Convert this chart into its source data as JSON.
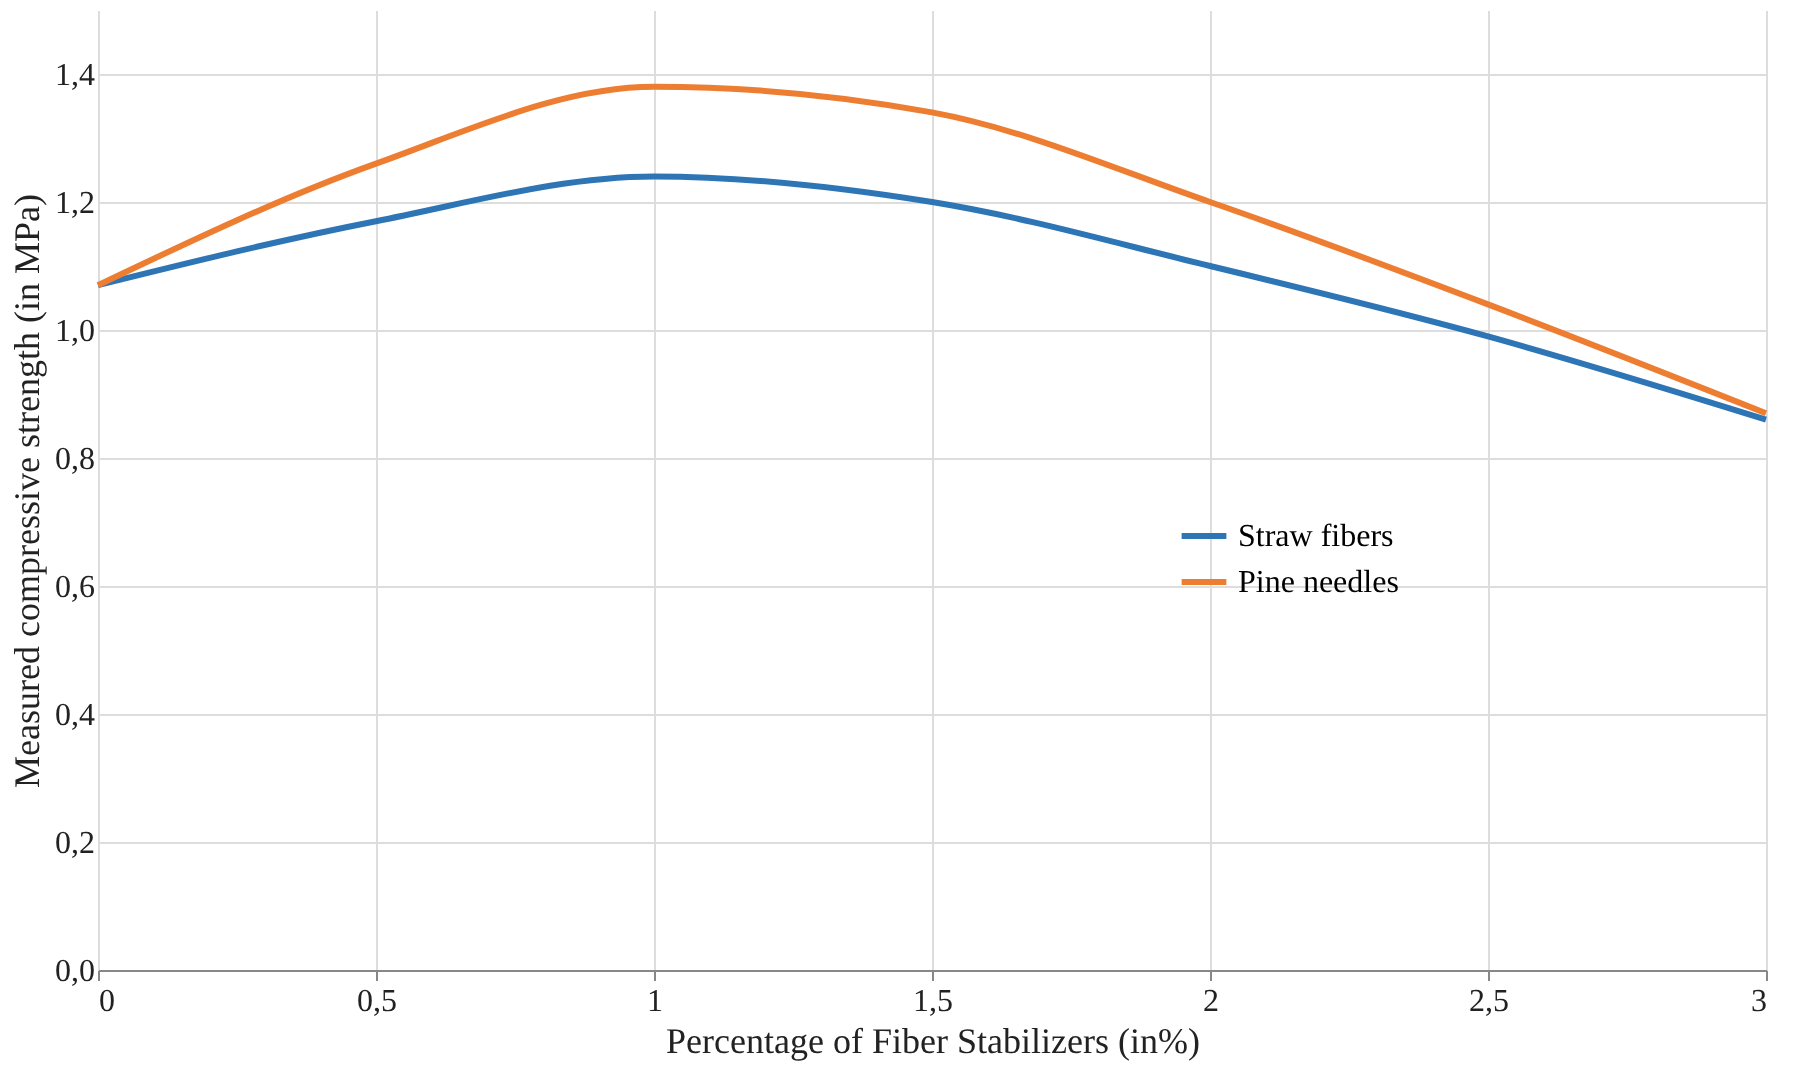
{
  "chart_data": {
    "type": "line",
    "xlabel": "Percentage of Fiber Stabilizers (in%)",
    "ylabel": "Measured compressive strength (in MPa)",
    "x": [
      0,
      0.5,
      1,
      1.5,
      2,
      2.5,
      3
    ],
    "series": [
      {
        "name": "Straw fibers",
        "color": "#2e75b6",
        "values": [
          1.07,
          1.17,
          1.24,
          1.2,
          1.1,
          0.99,
          0.86
        ]
      },
      {
        "name": "Pine needles",
        "color": "#ed7d31",
        "values": [
          1.07,
          1.26,
          1.38,
          1.34,
          1.2,
          1.04,
          0.87
        ]
      }
    ],
    "xlim": [
      0,
      3
    ],
    "ylim": [
      0,
      1.5
    ],
    "xticks": [
      0,
      {
        "value": 0.5,
        "label": "0,5"
      },
      1,
      {
        "value": 1.5,
        "label": "1,5"
      },
      2,
      {
        "value": 2.5,
        "label": "2,5"
      },
      3
    ],
    "yticks": [
      {
        "value": 0,
        "label": "0,0"
      },
      {
        "value": 0.2,
        "label": "0,2"
      },
      {
        "value": 0.4,
        "label": "0,4"
      },
      {
        "value": 0.6,
        "label": "0,6"
      },
      {
        "value": 0.8,
        "label": "0,8"
      },
      {
        "value": 1.0,
        "label": "1,0"
      },
      {
        "value": 1.2,
        "label": "1,2"
      },
      {
        "value": 1.4,
        "label": "1,4"
      }
    ],
    "grid": true,
    "legend": "right",
    "marker": "none",
    "line_style": "solid"
  }
}
